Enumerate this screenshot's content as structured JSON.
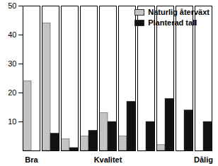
{
  "chart_data": {
    "type": "bar",
    "categories": [
      "Bra",
      null,
      null,
      null,
      "Kvalitet",
      null,
      null,
      null,
      null,
      "Dålig"
    ],
    "series": [
      {
        "name": "Naturlig återväxt",
        "color": "#c4c4c4",
        "values": [
          24,
          44,
          4,
          5,
          13,
          5,
          0,
          2,
          0,
          0
        ]
      },
      {
        "name": "Planterad tall",
        "color": "#111111",
        "values": [
          0,
          6,
          1,
          7,
          10,
          17,
          10,
          18,
          14,
          10
        ]
      }
    ],
    "ylim": [
      0,
      50
    ],
    "yticks": [
      10,
      20,
      30,
      40,
      50
    ],
    "grid": false,
    "legend": "top-right"
  }
}
